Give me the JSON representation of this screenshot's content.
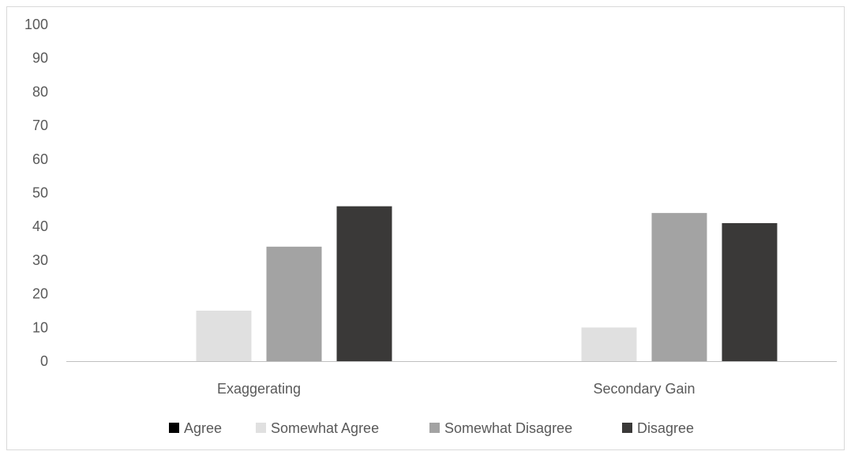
{
  "chart_data": {
    "type": "bar",
    "title": "",
    "xlabel": "",
    "ylabel": "",
    "ylim": [
      0,
      100
    ],
    "yticks": [
      0,
      10,
      20,
      30,
      40,
      50,
      60,
      70,
      80,
      90,
      100
    ],
    "categories": [
      "Exaggerating",
      "Secondary Gain"
    ],
    "series": [
      {
        "name": "Agree",
        "color": "#000000",
        "values": [
          0,
          0
        ]
      },
      {
        "name": "Somewhat Agree",
        "color": "#e0e0e0",
        "values": [
          15,
          10
        ]
      },
      {
        "name": "Somewhat Disagree",
        "color": "#a3a3a3",
        "values": [
          34,
          44
        ]
      },
      {
        "name": "Disagree",
        "color": "#3a3938",
        "values": [
          46,
          41
        ]
      }
    ],
    "grid": false,
    "legend_position": "bottom"
  }
}
